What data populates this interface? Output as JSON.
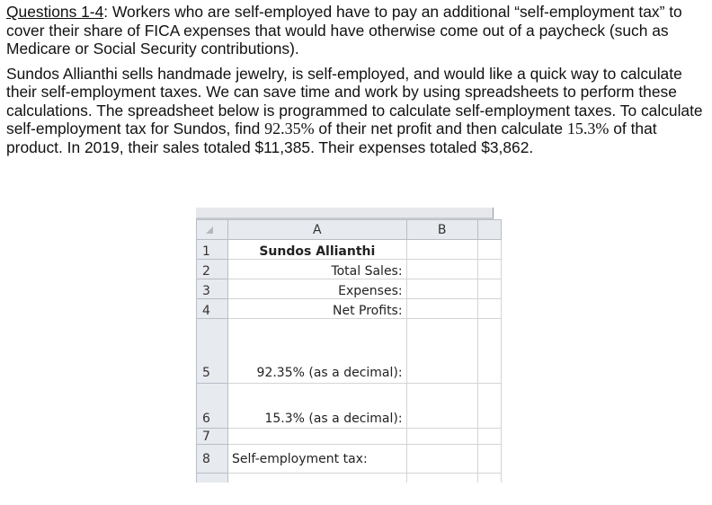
{
  "intro": {
    "heading": "Questions 1-4",
    "text": ": Workers who are self-employed have to pay an additional “self-employment tax” to cover their share of FICA expenses that would have otherwise come out of a paycheck (such as Medicare or Social Security contributions)."
  },
  "para2": {
    "part1": "Sundos Allianthi sells handmade jewelry, is self-employed, and would like a quick way to calculate their self-employment taxes. We can save time and work by using spreadsheets to perform these calculations. The spreadsheet below is programmed to calculate self-employment taxes. To calculate self-employment tax for Sundos, find ",
    "pct1": "92.35%",
    "part2": " of their net profit and then calculate ",
    "pct2": "15.3%",
    "part3": " of that product. In 2019, their sales totaled $11,385. Their expenses totaled $3,862."
  },
  "sheet": {
    "columns": [
      "A",
      "B"
    ],
    "rows": [
      {
        "num": "1",
        "a": "Sundos Allianthi"
      },
      {
        "num": "2",
        "a": "Total Sales:"
      },
      {
        "num": "3",
        "a": "Expenses:"
      },
      {
        "num": "4",
        "a": "Net Profits:"
      },
      {
        "num": "5",
        "a": "92.35% (as a decimal):"
      },
      {
        "num": "6",
        "a": "15.3% (as a decimal):"
      },
      {
        "num": "7",
        "a": ""
      },
      {
        "num": "8",
        "a": "Self-employment tax:"
      }
    ]
  }
}
